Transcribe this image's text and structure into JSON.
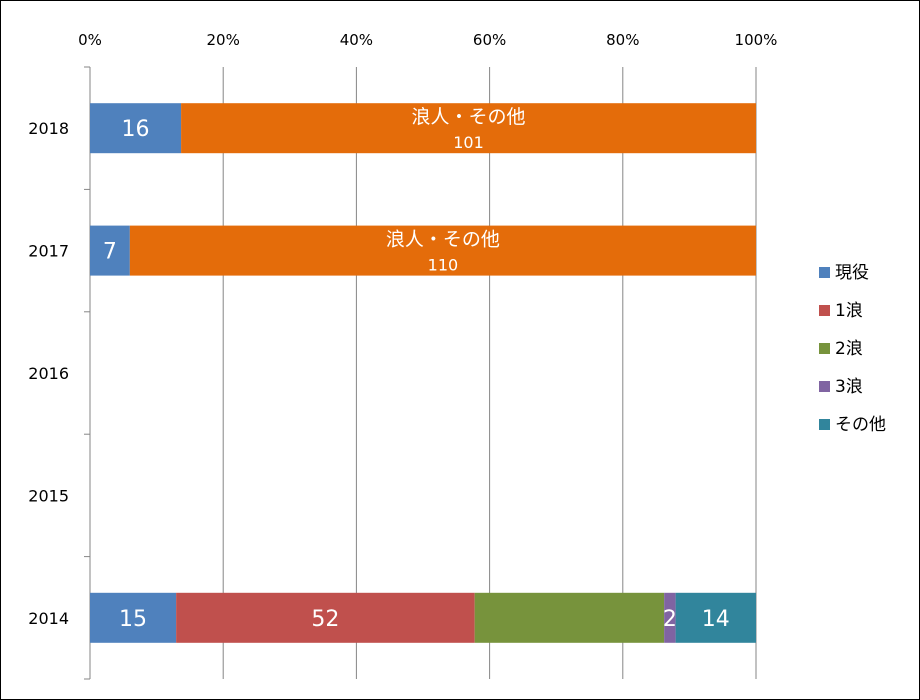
{
  "chart_data": {
    "type": "bar",
    "orientation": "horizontal",
    "stacked": "percent",
    "categories": [
      "2018",
      "2017",
      "2016",
      "2015",
      "2014"
    ],
    "x_ticks": [
      "0%",
      "20%",
      "40%",
      "60%",
      "80%",
      "100%"
    ],
    "xlim": [
      0,
      100
    ],
    "grid": true,
    "legend_position": "right",
    "series": [
      {
        "name": "現役",
        "color": "#4F81BD",
        "values": [
          16,
          7,
          null,
          null,
          15
        ]
      },
      {
        "name": "1浪",
        "color": "#C0504D",
        "values": [
          null,
          null,
          null,
          null,
          52
        ]
      },
      {
        "name": "2浪",
        "color": "#77933C",
        "values": [
          null,
          null,
          null,
          null,
          33
        ]
      },
      {
        "name": "3浪",
        "color": "#8064A2",
        "values": [
          null,
          null,
          null,
          null,
          2
        ]
      },
      {
        "name": "その他",
        "color": "#31859C",
        "values": [
          null,
          null,
          null,
          null,
          14
        ]
      },
      {
        "name": "浪人・その他",
        "color": "#E46C0A",
        "values": [
          101,
          110,
          null,
          null,
          null
        ],
        "legend": false
      }
    ],
    "data_labels": [
      {
        "category": "2018",
        "series": "現役",
        "text": "16"
      },
      {
        "category": "2018",
        "series": "浪人・その他",
        "name": "浪人・その他",
        "text": "101"
      },
      {
        "category": "2017",
        "series": "現役",
        "text": "7"
      },
      {
        "category": "2017",
        "series": "浪人・その他",
        "name": "浪人・その他",
        "text": "110"
      },
      {
        "category": "2014",
        "series": "現役",
        "text": "15"
      },
      {
        "category": "2014",
        "series": "1浪",
        "text": "52"
      },
      {
        "category": "2014",
        "series": "3浪",
        "text": "2"
      },
      {
        "category": "2014",
        "series": "その他",
        "text": "14"
      }
    ]
  }
}
